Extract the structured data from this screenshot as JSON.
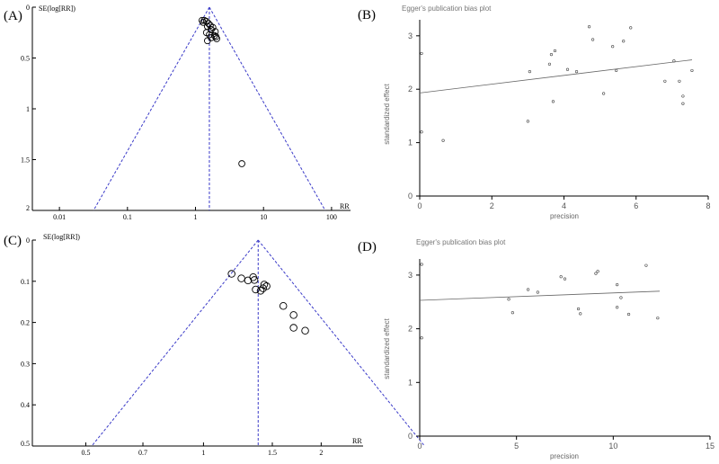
{
  "chart_data": [
    {
      "id": "A",
      "type": "scatter",
      "panel_label": "(A)",
      "ylabel": "SE(log[RR])",
      "xlabel": "RR",
      "xscale": "log",
      "xticks": [
        "0.01",
        "0.1",
        "1",
        "10",
        "100"
      ],
      "xtick_values": [
        0.01,
        0.1,
        1,
        10,
        100
      ],
      "yticks": [
        "0",
        "0.5",
        "1",
        "1.5",
        "2"
      ],
      "ytick_values": [
        0,
        0.5,
        1,
        1.5,
        2
      ],
      "ylim": [
        0,
        2
      ],
      "pooled_rr": 1.6,
      "points": [
        {
          "rr": 1.25,
          "se": 0.13
        },
        {
          "rr": 1.35,
          "se": 0.13
        },
        {
          "rr": 1.45,
          "se": 0.14
        },
        {
          "rr": 1.3,
          "se": 0.15
        },
        {
          "rr": 1.55,
          "se": 0.16
        },
        {
          "rr": 1.65,
          "se": 0.18
        },
        {
          "rr": 1.5,
          "se": 0.19
        },
        {
          "rr": 1.8,
          "se": 0.2
        },
        {
          "rr": 1.7,
          "se": 0.22
        },
        {
          "rr": 1.95,
          "se": 0.24
        },
        {
          "rr": 1.45,
          "se": 0.25
        },
        {
          "rr": 1.6,
          "se": 0.27
        },
        {
          "rr": 1.9,
          "se": 0.28
        },
        {
          "rr": 2.0,
          "se": 0.29
        },
        {
          "rr": 1.7,
          "se": 0.3
        },
        {
          "rr": 2.05,
          "se": 0.31
        },
        {
          "rr": 1.5,
          "se": 0.33
        },
        {
          "rr": 4.8,
          "se": 1.54
        }
      ]
    },
    {
      "id": "B",
      "type": "scatter",
      "panel_label": "(B)",
      "title": "Egger's publication bias plot",
      "xlabel": "precision",
      "ylabel": "standardized effect",
      "xlim": [
        0,
        8
      ],
      "ylim": [
        0,
        3.3
      ],
      "xticks": [
        0,
        2,
        4,
        6,
        8
      ],
      "yticks": [
        0,
        1,
        2,
        3
      ],
      "regression": {
        "x0": 0,
        "y0": 1.93,
        "x1": 7.55,
        "y1": 2.55
      },
      "points": [
        [
          0.05,
          2.67
        ],
        [
          0.05,
          1.2
        ],
        [
          0.65,
          1.04
        ],
        [
          3.0,
          1.4
        ],
        [
          3.05,
          2.33
        ],
        [
          3.6,
          2.47
        ],
        [
          3.65,
          2.65
        ],
        [
          3.7,
          1.77
        ],
        [
          3.75,
          2.72
        ],
        [
          4.1,
          2.37
        ],
        [
          4.35,
          2.33
        ],
        [
          4.7,
          3.17
        ],
        [
          4.8,
          2.93
        ],
        [
          5.1,
          1.92
        ],
        [
          5.35,
          2.8
        ],
        [
          5.45,
          2.35
        ],
        [
          5.65,
          2.9
        ],
        [
          5.85,
          3.15
        ],
        [
          6.8,
          2.15
        ],
        [
          7.05,
          2.53
        ],
        [
          7.2,
          2.15
        ],
        [
          7.3,
          1.87
        ],
        [
          7.3,
          1.73
        ],
        [
          7.55,
          2.35
        ]
      ]
    },
    {
      "id": "C",
      "type": "scatter",
      "panel_label": "(C)",
      "ylabel": "SE(log[RR])",
      "xlabel": "RR",
      "xscale": "log",
      "xticks": [
        "0.5",
        "0.7",
        "1",
        "1.5",
        "2"
      ],
      "xtick_values": [
        0.5,
        0.7,
        1,
        1.5,
        2
      ],
      "yticks": [
        "0",
        "0.1",
        "0.2",
        "0.3",
        "0.4",
        "0.5"
      ],
      "ytick_values": [
        0,
        0.1,
        0.2,
        0.3,
        0.4,
        0.5
      ],
      "ylim": [
        0,
        0.5
      ],
      "pooled_rr": 1.38,
      "points": [
        {
          "rr": 1.18,
          "se": 0.082
        },
        {
          "rr": 1.25,
          "se": 0.093
        },
        {
          "rr": 1.3,
          "se": 0.098
        },
        {
          "rr": 1.34,
          "se": 0.09
        },
        {
          "rr": 1.35,
          "se": 0.097
        },
        {
          "rr": 1.43,
          "se": 0.108
        },
        {
          "rr": 1.45,
          "se": 0.112
        },
        {
          "rr": 1.42,
          "se": 0.117
        },
        {
          "rr": 1.36,
          "se": 0.12
        },
        {
          "rr": 1.4,
          "se": 0.123
        },
        {
          "rr": 1.6,
          "se": 0.16
        },
        {
          "rr": 1.7,
          "se": 0.182
        },
        {
          "rr": 1.7,
          "se": 0.213
        },
        {
          "rr": 1.82,
          "se": 0.22
        }
      ]
    },
    {
      "id": "D",
      "type": "scatter",
      "panel_label": "(D)",
      "title": "Egger's publication bias plot",
      "xlabel": "precision",
      "ylabel": "standardized effect",
      "xlim": [
        0,
        15
      ],
      "ylim": [
        0,
        3.3
      ],
      "xticks": [
        0,
        5,
        10,
        15
      ],
      "yticks": [
        0,
        1,
        2,
        3
      ],
      "regression": {
        "x0": 0,
        "y0": 2.53,
        "x1": 12.4,
        "y1": 2.7
      },
      "points": [
        [
          0.1,
          3.2
        ],
        [
          0.1,
          1.83
        ],
        [
          4.6,
          2.55
        ],
        [
          4.8,
          2.3
        ],
        [
          5.6,
          2.73
        ],
        [
          6.1,
          2.68
        ],
        [
          7.3,
          2.97
        ],
        [
          7.5,
          2.93
        ],
        [
          8.2,
          2.37
        ],
        [
          8.3,
          2.28
        ],
        [
          9.1,
          3.03
        ],
        [
          9.2,
          3.07
        ],
        [
          10.2,
          2.82
        ],
        [
          10.4,
          2.58
        ],
        [
          10.8,
          2.27
        ],
        [
          10.2,
          2.4
        ],
        [
          11.7,
          3.18
        ],
        [
          12.3,
          2.2
        ]
      ]
    }
  ]
}
